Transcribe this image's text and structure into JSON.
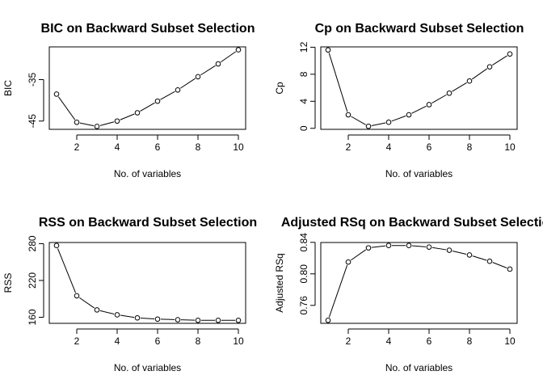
{
  "chart_data": [
    {
      "type": "line",
      "title": "BIC on Backward Subset Selection",
      "xlabel": "No. of variables",
      "ylabel": "BIC",
      "x": [
        1,
        2,
        3,
        4,
        5,
        6,
        7,
        8,
        9,
        10
      ],
      "series": [
        {
          "values": [
            -38.5,
            -45.3,
            -46.3,
            -45.0,
            -43.0,
            -40.2,
            -37.5,
            -34.3,
            -31.2,
            -27.8
          ]
        }
      ],
      "xlim": [
        0.64,
        10.36
      ],
      "ylim": [
        -47.0,
        -27.1
      ],
      "xticks": [
        2,
        4,
        6,
        8,
        10
      ],
      "yticks": [
        -45,
        -35
      ],
      "ytick_labels": [
        "-45",
        "-35"
      ],
      "grid": false
    },
    {
      "type": "line",
      "title": "Cp on Backward Subset Selection",
      "xlabel": "No. of variables",
      "ylabel": "Cp",
      "x": [
        1,
        2,
        3,
        4,
        5,
        6,
        7,
        8,
        9,
        10
      ],
      "series": [
        {
          "values": [
            11.6,
            2.0,
            0.3,
            0.9,
            2.0,
            3.5,
            5.2,
            7.0,
            9.1,
            11.0
          ]
        }
      ],
      "xlim": [
        0.64,
        10.36
      ],
      "ylim": [
        -0.15,
        12.05
      ],
      "xticks": [
        2,
        4,
        6,
        8,
        10
      ],
      "yticks": [
        0,
        4,
        8,
        12
      ],
      "ytick_labels": [
        "0",
        "4",
        "8",
        "12"
      ],
      "grid": false
    },
    {
      "type": "line",
      "title": "RSS on Backward Subset Selection",
      "xlabel": "No. of variables",
      "ylabel": "RSS",
      "x": [
        1,
        2,
        3,
        4,
        5,
        6,
        7,
        8,
        9,
        10
      ],
      "series": [
        {
          "values": [
            277,
            195,
            172,
            164,
            159,
            157,
            156,
            155,
            155,
            155
          ]
        }
      ],
      "xlim": [
        0.64,
        10.36
      ],
      "ylim": [
        150.1,
        281.9
      ],
      "xticks": [
        2,
        4,
        6,
        8,
        10
      ],
      "yticks": [
        160,
        220,
        280
      ],
      "ytick_labels": [
        "160",
        "220",
        "280"
      ],
      "grid": false
    },
    {
      "type": "line",
      "title": "Adjusted RSq on Backward Subset Selection",
      "xlabel": "No. of variables",
      "ylabel": "Adjusted RSq",
      "x": [
        1,
        2,
        3,
        4,
        5,
        6,
        7,
        8,
        9,
        10
      ],
      "series": [
        {
          "values": [
            0.741,
            0.815,
            0.833,
            0.836,
            0.836,
            0.834,
            0.83,
            0.824,
            0.816,
            0.806
          ]
        }
      ],
      "xlim": [
        0.64,
        10.36
      ],
      "ylim": [
        0.7372,
        0.8398
      ],
      "xticks": [
        2,
        4,
        6,
        8,
        10
      ],
      "yticks": [
        0.76,
        0.8,
        0.84
      ],
      "ytick_labels": [
        "0.76",
        "0.80",
        "0.84"
      ],
      "grid": false
    }
  ]
}
